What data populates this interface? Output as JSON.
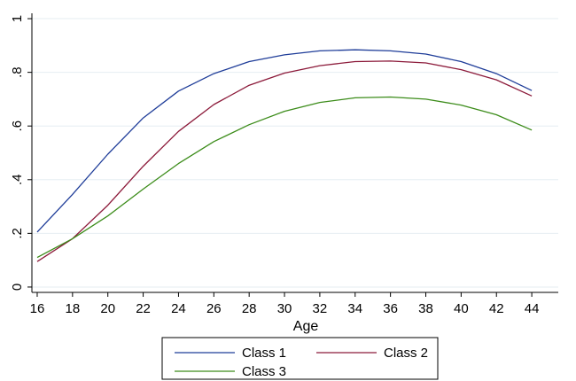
{
  "chart_data": {
    "type": "line",
    "xlabel": "Age",
    "ylabel": "",
    "title": "",
    "xlim": [
      15.7,
      45.5
    ],
    "ylim": [
      -0.02,
      1.02
    ],
    "xticks": [
      16,
      18,
      20,
      22,
      24,
      26,
      28,
      30,
      32,
      34,
      36,
      38,
      40,
      42,
      44
    ],
    "xtick_labels": [
      "16",
      "18",
      "20",
      "22",
      "24",
      "26",
      "28",
      "30",
      "32",
      "34",
      "36",
      "38",
      "40",
      "42",
      "44"
    ],
    "yticks": [
      0,
      0.2,
      0.4,
      0.6,
      0.8,
      1
    ],
    "ytick_labels": [
      "0",
      ".2",
      ".4",
      ".6",
      ".8",
      "1"
    ],
    "grid": true,
    "legend_position": "bottom",
    "x": [
      16,
      18,
      20,
      22,
      24,
      26,
      28,
      30,
      32,
      34,
      36,
      38,
      40,
      42,
      44
    ],
    "series": [
      {
        "name": "Class 1",
        "color": "#1f3d99",
        "values": [
          0.205,
          0.345,
          0.495,
          0.63,
          0.73,
          0.795,
          0.84,
          0.865,
          0.88,
          0.884,
          0.88,
          0.868,
          0.84,
          0.795,
          0.732
        ]
      },
      {
        "name": "Class 2",
        "color": "#8c1a3a",
        "values": [
          0.095,
          0.18,
          0.305,
          0.45,
          0.58,
          0.68,
          0.752,
          0.797,
          0.825,
          0.84,
          0.842,
          0.835,
          0.81,
          0.772,
          0.712
        ]
      },
      {
        "name": "Class 3",
        "color": "#3c8c1a",
        "values": [
          0.11,
          0.18,
          0.265,
          0.365,
          0.46,
          0.542,
          0.605,
          0.655,
          0.688,
          0.705,
          0.708,
          0.7,
          0.678,
          0.642,
          0.585
        ]
      }
    ]
  }
}
